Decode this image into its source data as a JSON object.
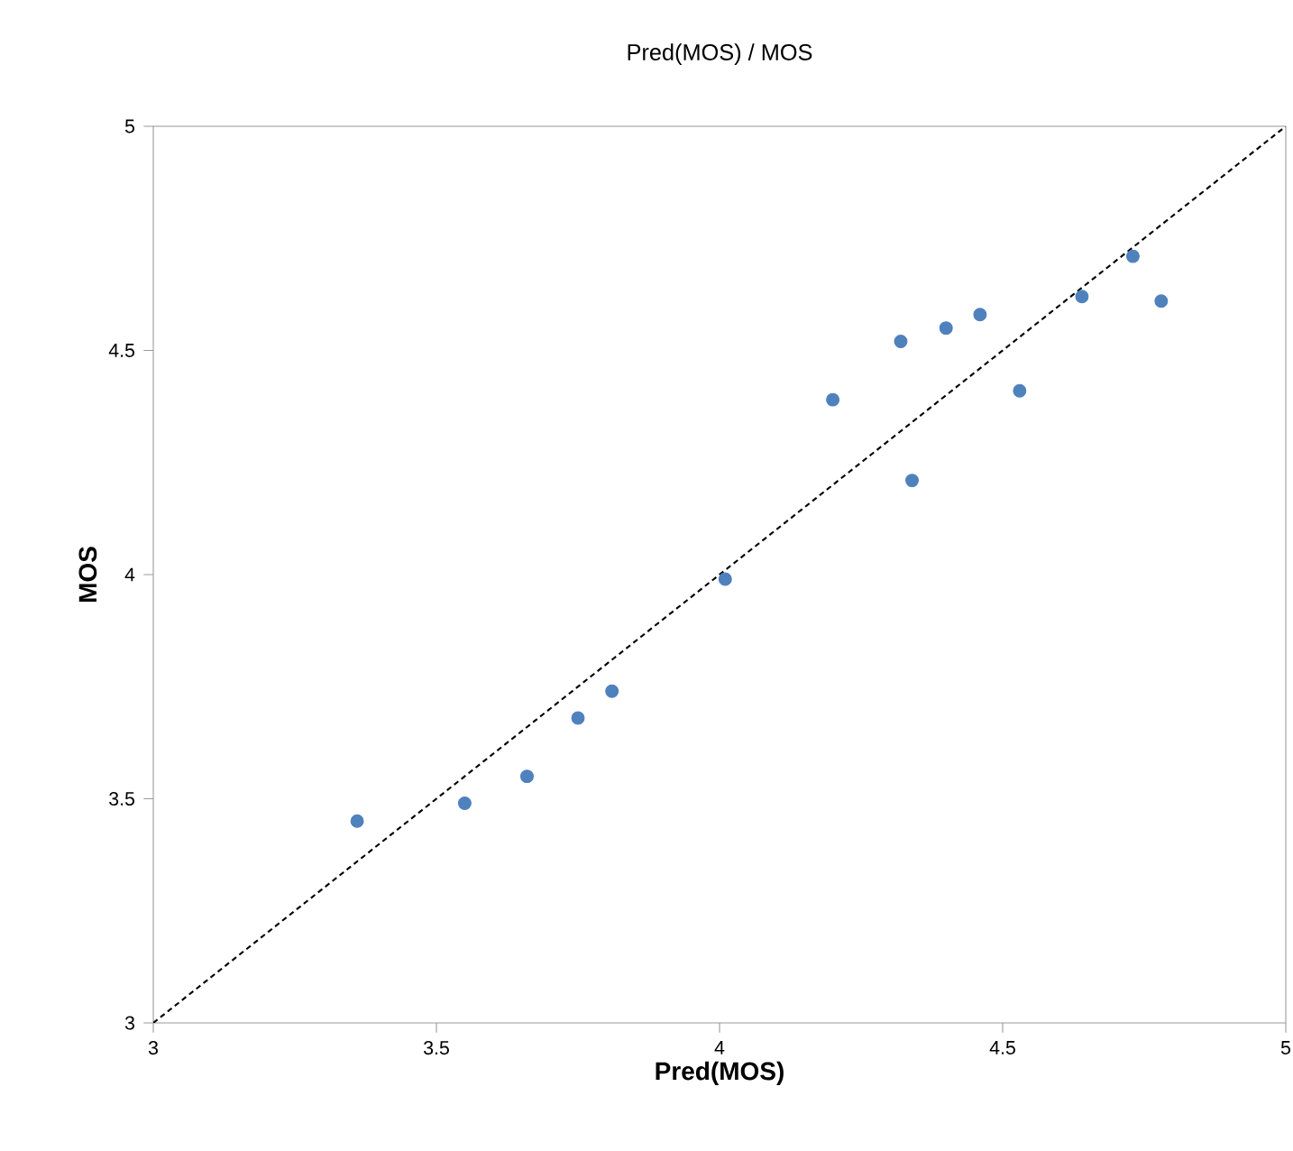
{
  "chart_data": {
    "type": "scatter",
    "title": "Pred(MOS) / MOS",
    "xlabel": "Pred(MOS)",
    "ylabel": "MOS",
    "xlim": [
      3,
      5
    ],
    "ylim": [
      3,
      5
    ],
    "xticks": [
      3,
      3.5,
      4,
      4.5,
      5
    ],
    "yticks": [
      3,
      3.5,
      4,
      4.5,
      5
    ],
    "series": [
      {
        "color": "#4f81bd",
        "marker": "circle",
        "x": [
          3.36,
          3.55,
          3.66,
          3.75,
          3.81,
          4.01,
          4.2,
          4.32,
          4.34,
          4.4,
          4.46,
          4.53,
          4.64,
          4.73,
          4.78
        ],
        "values": [
          3.45,
          3.49,
          3.55,
          3.68,
          3.74,
          3.99,
          4.39,
          4.52,
          4.21,
          4.55,
          4.58,
          4.41,
          4.62,
          4.71,
          4.61
        ]
      },
      {
        "type": "line",
        "color": "#000000",
        "x": [
          3,
          5
        ],
        "values": [
          3,
          5
        ],
        "line_style": "dashed",
        "marker": "none"
      }
    ]
  }
}
